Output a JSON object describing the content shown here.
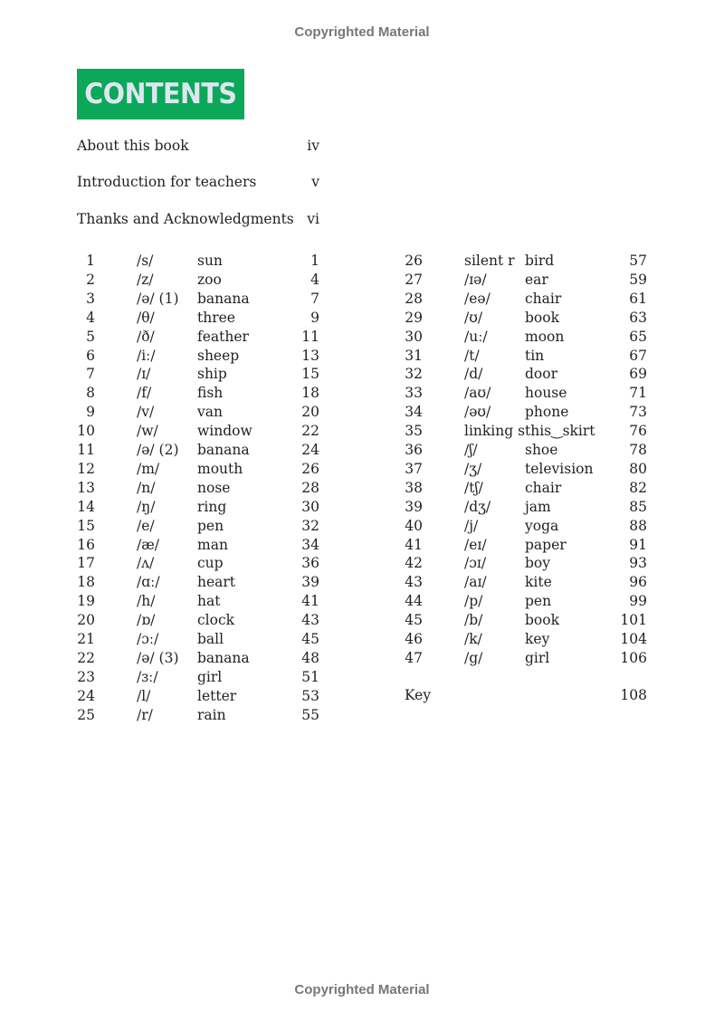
{
  "watermark": "Copyrighted Material",
  "title": "CONTENTS",
  "accent_color": "#0aa858",
  "front_matter": [
    {
      "label": "About this book",
      "page": "iv"
    },
    {
      "label": "Introduction for teachers",
      "page": "v"
    },
    {
      "label": "Thanks and Acknowledgments",
      "page": "vi"
    }
  ],
  "units": [
    [
      "1",
      "/s/",
      "sun",
      "1"
    ],
    [
      "2",
      "/z/",
      "zoo",
      "4"
    ],
    [
      "3",
      "/ə/ (1)",
      "banana",
      "7"
    ],
    [
      "4",
      "/θ/",
      "three",
      "9"
    ],
    [
      "5",
      "/ð/",
      "feather",
      "11"
    ],
    [
      "6",
      "/iː/",
      "sheep",
      "13"
    ],
    [
      "7",
      "/ɪ/",
      "ship",
      "15"
    ],
    [
      "8",
      "/f/",
      "fish",
      "18"
    ],
    [
      "9",
      "/v/",
      "van",
      "20"
    ],
    [
      "10",
      "/w/",
      "window",
      "22"
    ],
    [
      "11",
      "/ə/ (2)",
      "banana",
      "24"
    ],
    [
      "12",
      "/m/",
      "mouth",
      "26"
    ],
    [
      "13",
      "/n/",
      "nose",
      "28"
    ],
    [
      "14",
      "/ŋ/",
      "ring",
      "30"
    ],
    [
      "15",
      "/e/",
      "pen",
      "32"
    ],
    [
      "16",
      "/æ/",
      "man",
      "34"
    ],
    [
      "17",
      "/ʌ/",
      "cup",
      "36"
    ],
    [
      "18",
      "/ɑː/",
      "heart",
      "39"
    ],
    [
      "19",
      "/h/",
      "hat",
      "41"
    ],
    [
      "20",
      "/ɒ/",
      "clock",
      "43"
    ],
    [
      "21",
      "/ɔː/",
      "ball",
      "45"
    ],
    [
      "22",
      "/ə/ (3)",
      "banana",
      "48"
    ],
    [
      "23",
      "/ɜː/",
      "girl",
      "51"
    ],
    [
      "24",
      "/l/",
      "letter",
      "53"
    ],
    [
      "25",
      "/r/",
      "rain",
      "55"
    ],
    [
      "26",
      "silent r",
      "bird",
      "57"
    ],
    [
      "27",
      "/ɪə/",
      "ear",
      "59"
    ],
    [
      "28",
      "/eə/",
      "chair",
      "61"
    ],
    [
      "29",
      "/ʊ/",
      "book",
      "63"
    ],
    [
      "30",
      "/uː/",
      "moon",
      "65"
    ],
    [
      "31",
      "/t/",
      "tin",
      "67"
    ],
    [
      "32",
      "/d/",
      "door",
      "69"
    ],
    [
      "33",
      "/aʊ/",
      "house",
      "71"
    ],
    [
      "34",
      "/əʊ/",
      "phone",
      "73"
    ],
    [
      "35",
      "linking s",
      "this‿skirt",
      "76"
    ],
    [
      "36",
      "/ʃ/",
      "shoe",
      "78"
    ],
    [
      "37",
      "/ʒ/",
      "television",
      "80"
    ],
    [
      "38",
      "/tʃ/",
      "chair",
      "82"
    ],
    [
      "39",
      "/dʒ/",
      "jam",
      "85"
    ],
    [
      "40",
      "/j/",
      "yoga",
      "88"
    ],
    [
      "41",
      "/eɪ/",
      "paper",
      "91"
    ],
    [
      "42",
      "/ɔɪ/",
      "boy",
      "93"
    ],
    [
      "43",
      "/aɪ/",
      "kite",
      "96"
    ],
    [
      "44",
      "/p/",
      "pen",
      "99"
    ],
    [
      "45",
      "/b/",
      "book",
      "101"
    ],
    [
      "46",
      "/k/",
      "key",
      "104"
    ],
    [
      "47",
      "/g/",
      "girl",
      "106"
    ]
  ],
  "key": {
    "label": "Key",
    "page": "108"
  }
}
